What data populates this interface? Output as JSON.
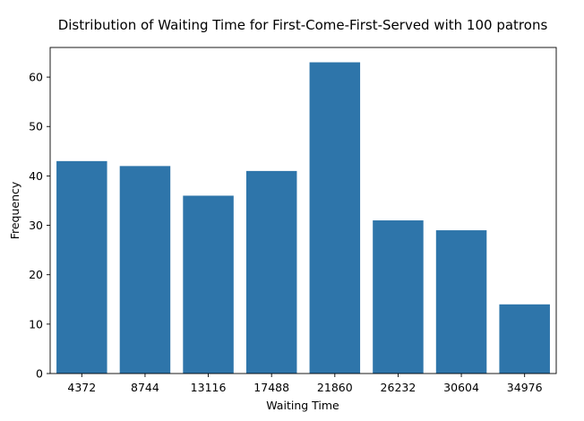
{
  "chart_data": {
    "type": "bar",
    "title": "Distribution of Waiting Time for First-Come-First-Served with 100 patrons",
    "xlabel": "Waiting Time",
    "ylabel": "Frequency",
    "categories": [
      "4372",
      "8744",
      "13116",
      "17488",
      "21860",
      "26232",
      "30604",
      "34976"
    ],
    "values": [
      43,
      42,
      36,
      41,
      63,
      31,
      29,
      14
    ],
    "ylim": [
      0,
      66
    ],
    "yticks": [
      0,
      10,
      20,
      30,
      40,
      50,
      60
    ],
    "bar_color": "#2e75aa",
    "grid": false,
    "legend": "none"
  }
}
